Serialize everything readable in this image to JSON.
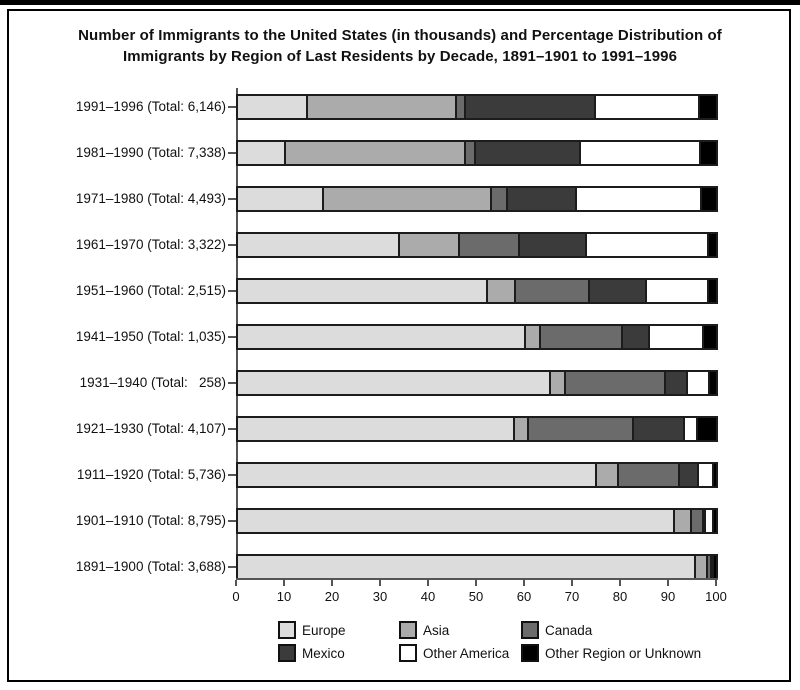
{
  "header": {
    "title_line1": "Number of Immigrants to the United States (in thousands) and Percentage Distribution of",
    "title_line2": "Immigrants by Region of Last Residents by Decade, 1891–1901 to 1991–1996"
  },
  "chart_data": {
    "type": "bar",
    "subtype": "horizontal-stacked-percentage",
    "title": "Number of Immigrants to the United States (in thousands) and Percentage Distribution of Immigrants by Region of Last Residents by Decade, 1891–1901 to 1991–1996",
    "xlabel": "",
    "ylabel": "",
    "xlim": [
      0,
      100
    ],
    "x_ticks": [
      0,
      10,
      20,
      30,
      40,
      50,
      60,
      70,
      80,
      90,
      100
    ],
    "grid": false,
    "legend_position": "bottom",
    "series_names": [
      "Europe",
      "Asia",
      "Canada",
      "Mexico",
      "Other America",
      "Other Region or Unknown"
    ],
    "series_keys": [
      "europe",
      "asia",
      "canada",
      "mexico",
      "other-america",
      "other-region-or-unknown"
    ],
    "series_colors": [
      "#dcdcdc",
      "#ababab",
      "#6b6b6b",
      "#3b3b3b",
      "#ffffff",
      "#000000"
    ],
    "rows": [
      {
        "label": "1991–1996 (Total: 6,146)",
        "total_thousands": "6,146",
        "values": [
          14.7,
          31.1,
          1.8,
          27.4,
          21.7,
          3.3
        ]
      },
      {
        "label": "1981–1990 (Total: 7,338)",
        "total_thousands": "7,338",
        "values": [
          10.1,
          37.6,
          2.0,
          22.0,
          25.2,
          3.1
        ]
      },
      {
        "label": "1971–1980 (Total: 4,493)",
        "total_thousands": "4,493",
        "values": [
          17.9,
          35.2,
          3.3,
          14.6,
          26.1,
          2.9
        ]
      },
      {
        "label": "1961–1970 (Total: 3,322)",
        "total_thousands": "3,322",
        "values": [
          33.9,
          12.6,
          12.5,
          14.1,
          25.4,
          1.5
        ]
      },
      {
        "label": "1951–1960 (Total: 2,515)",
        "total_thousands": "2,515",
        "values": [
          52.4,
          5.8,
          15.5,
          11.8,
          13.0,
          1.5
        ]
      },
      {
        "label": "1941–1950 (Total: 1,035)",
        "total_thousands": "1,035",
        "values": [
          60.3,
          3.1,
          17.1,
          5.8,
          11.3,
          2.4
        ]
      },
      {
        "label": "1931–1940 (Total:   258)",
        "total_thousands": "258",
        "values": [
          65.4,
          3.2,
          21.0,
          4.5,
          4.7,
          1.2
        ]
      },
      {
        "label": "1921–1930 (Total: 4,107)",
        "total_thousands": "4,107",
        "values": [
          58.0,
          2.8,
          22.0,
          10.8,
          2.6,
          3.8
        ]
      },
      {
        "label": "1911–1920 (Total: 5,736)",
        "total_thousands": "5,736",
        "values": [
          75.2,
          4.5,
          12.8,
          4.0,
          3.1,
          0.4
        ]
      },
      {
        "label": "1901–1910 (Total: 8,795)",
        "total_thousands": "8,795",
        "values": [
          91.5,
          3.6,
          2.5,
          0.3,
          1.7,
          0.4
        ]
      },
      {
        "label": "1891–1900 (Total: 3,688)",
        "total_thousands": "3,688",
        "values": [
          96.0,
          2.4,
          0.8,
          0.0,
          0.3,
          0.5
        ]
      }
    ]
  },
  "layout_hints": {
    "axis_color": "#555555",
    "bar_border_color": "#1c1c1c"
  }
}
